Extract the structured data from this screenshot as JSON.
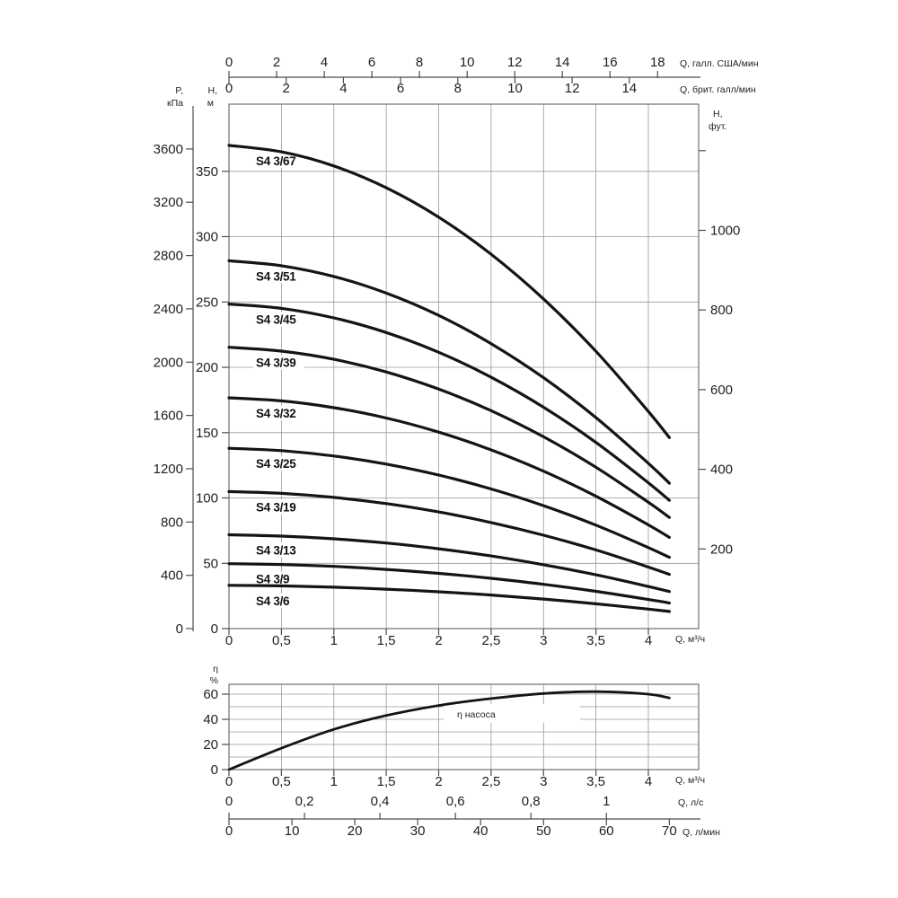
{
  "colors": {
    "background": "#ffffff",
    "curve": "#141414",
    "grid": "#9a9a9a",
    "frame": "#707070",
    "axis": "#4d4d4d",
    "text": "#1f1f1f"
  },
  "chart_data": [
    {
      "type": "line",
      "title": "",
      "x": {
        "unit_label": "Q, м³/ч",
        "ticks": [
          [
            "0",
            0
          ],
          [
            "0,5",
            0.5
          ],
          [
            "1",
            1
          ],
          [
            "1,5",
            1.5
          ],
          [
            "2",
            2
          ],
          [
            "2,5",
            2.5
          ],
          [
            "3",
            3
          ],
          [
            "3,5",
            3.5
          ],
          [
            "4",
            4
          ]
        ],
        "range": [
          0,
          4.48
        ]
      },
      "x_us": {
        "unit_label": "Q, галл. США/мин",
        "ticks": [
          0,
          2,
          4,
          6,
          8,
          10,
          12,
          14,
          16,
          18
        ],
        "m3h_per_gal": 0.227124
      },
      "x_uk": {
        "unit_label": "Q, брит. галл/мин",
        "ticks": [
          0,
          2,
          4,
          6,
          8,
          10,
          12,
          14
        ],
        "m3h_per_gal": 0.272765
      },
      "y_m": {
        "title": [
          "H,",
          "м"
        ],
        "ticks": [
          0,
          50,
          100,
          150,
          200,
          250,
          300,
          350
        ],
        "range": [
          0,
          401
        ]
      },
      "y_kpa": {
        "title": [
          "P,",
          "кПа"
        ],
        "ticks": [
          0,
          400,
          800,
          1200,
          1600,
          2000,
          2400,
          2800,
          3200,
          3600
        ],
        "m_per_kpa": 0.10197
      },
      "y_ft": {
        "title": [
          "H,",
          "фут."
        ],
        "labeled_ticks": [
          200,
          400,
          600,
          800,
          1000
        ],
        "unlabeled_ticks": [
          1200
        ],
        "m_per_ft": 0.3048
      },
      "q_samples": [
        0,
        0.5,
        1,
        1.5,
        2,
        2.5,
        3,
        3.5,
        4,
        4.2
      ],
      "series": [
        {
          "label": "S4 3/67",
          "stages": 67,
          "head_m": [
            369.8,
            364.9,
            354.1,
            337.4,
            314.9,
            286.5,
            252.3,
            212.2,
            166.2,
            146.2
          ]
        },
        {
          "label": "S4 3/51",
          "stages": 51,
          "head_m": [
            281.5,
            277.7,
            269.5,
            256.8,
            239.7,
            218.1,
            192.0,
            161.5,
            126.5,
            111.3
          ]
        },
        {
          "label": "S4 3/45",
          "stages": 45,
          "head_m": [
            248.4,
            245.1,
            237.8,
            226.6,
            211.5,
            192.4,
            169.4,
            142.5,
            111.6,
            98.2
          ]
        },
        {
          "label": "S4 3/39",
          "stages": 39,
          "head_m": [
            215.3,
            212.4,
            206.1,
            196.4,
            183.3,
            166.8,
            146.8,
            123.5,
            96.7,
            85.1
          ]
        },
        {
          "label": "S4 3/32",
          "stages": 32,
          "head_m": [
            176.6,
            174.3,
            169.1,
            161.2,
            150.4,
            136.8,
            120.5,
            101.3,
            79.4,
            69.8
          ]
        },
        {
          "label": "S4 3/25",
          "stages": 25,
          "head_m": [
            138.0,
            136.2,
            132.1,
            125.9,
            117.5,
            106.9,
            94.1,
            79.2,
            62.0,
            54.6
          ]
        },
        {
          "label": "S4 3/19",
          "stages": 19,
          "head_m": [
            104.9,
            103.5,
            100.4,
            95.7,
            89.3,
            81.2,
            71.5,
            60.2,
            47.1,
            41.5
          ]
        },
        {
          "label": "S4 3/13",
          "stages": 13,
          "head_m": [
            71.8,
            70.8,
            68.7,
            65.5,
            61.1,
            55.6,
            48.9,
            41.2,
            32.2,
            28.4
          ]
        },
        {
          "label": "S4 3/9",
          "stages": 9,
          "head_m": [
            49.7,
            49.0,
            47.6,
            45.3,
            42.3,
            38.5,
            33.9,
            28.5,
            22.3,
            19.6
          ]
        },
        {
          "label": "S4 3/6",
          "stages": 6,
          "head_m": [
            33.1,
            32.7,
            31.7,
            30.2,
            28.2,
            25.7,
            22.6,
            19.0,
            14.9,
            13.1
          ]
        }
      ]
    },
    {
      "type": "line",
      "title": "",
      "y": {
        "title": [
          "η",
          "%"
        ],
        "labeled_ticks": [
          [
            "0",
            0
          ],
          [
            "20",
            20
          ],
          [
            "40",
            40
          ],
          [
            "60",
            60
          ]
        ],
        "grid_step": 10,
        "max_grid": 60,
        "range": [
          0,
          68
        ]
      },
      "x": {
        "unit_label": "Q, м³/ч",
        "ticks": [
          [
            "0",
            0
          ],
          [
            "0,5",
            0.5
          ],
          [
            "1",
            1
          ],
          [
            "1,5",
            1.5
          ],
          [
            "2",
            2
          ],
          [
            "2,5",
            2.5
          ],
          [
            "3",
            3
          ],
          [
            "3,5",
            3.5
          ],
          [
            "4",
            4
          ]
        ]
      },
      "x_ls": {
        "unit_label": "Q, л/с",
        "ticks": [
          [
            "0",
            0
          ],
          [
            "0,2",
            0.2
          ],
          [
            "0,4",
            0.4
          ],
          [
            "0,6",
            0.6
          ],
          [
            "0,8",
            0.8
          ],
          [
            "1",
            1
          ]
        ],
        "m3h_per_ls": 3.6
      },
      "x_lmin": {
        "unit_label": "Q, л/мин",
        "ticks": [
          [
            "0",
            0
          ],
          [
            "10",
            10
          ],
          [
            "20",
            20
          ],
          [
            "30",
            30
          ],
          [
            "40",
            40
          ],
          [
            "50",
            50
          ],
          [
            "60",
            60
          ],
          [
            "70",
            70
          ]
        ],
        "m3h_per_lmin": 0.06
      },
      "series": [
        {
          "label": "η насоса",
          "q": [
            0,
            0.5,
            1,
            1.5,
            2,
            2.5,
            3,
            3.5,
            4,
            4.2
          ],
          "eta_pct": [
            0,
            17,
            32,
            43,
            51,
            56.5,
            60.5,
            62,
            60,
            57
          ]
        }
      ]
    }
  ]
}
